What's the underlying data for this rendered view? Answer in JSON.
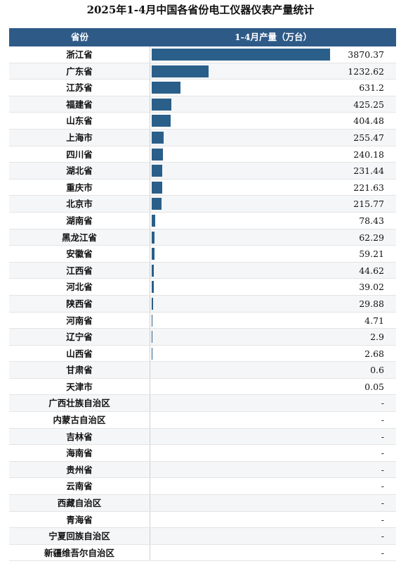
{
  "title": "2025年1-4月中国各省份电工仪器仪表产量统计",
  "header": {
    "col1": "省份",
    "col2": "1-4月产量（万台）"
  },
  "chart_data": {
    "type": "bar",
    "title": "2025年1-4月中国各省份电工仪器仪表产量统计",
    "xlabel": "省份",
    "ylabel": "1-4月产量（万台）",
    "categories": [
      "浙江省",
      "广东省",
      "江苏省",
      "福建省",
      "山东省",
      "上海市",
      "四川省",
      "湖北省",
      "重庆市",
      "北京市",
      "湖南省",
      "黑龙江省",
      "安徽省",
      "江西省",
      "河北省",
      "陕西省",
      "河南省",
      "辽宁省",
      "山西省",
      "甘肃省",
      "天津市",
      "广西壮族自治区",
      "内蒙古自治区",
      "吉林省",
      "海南省",
      "贵州省",
      "云南省",
      "西藏自治区",
      "青海省",
      "宁夏回族自治区",
      "新疆维吾尔自治区"
    ],
    "values": [
      3870.37,
      1232.62,
      631.2,
      425.25,
      404.48,
      255.47,
      240.18,
      231.44,
      221.63,
      215.77,
      78.43,
      62.29,
      59.21,
      44.62,
      39.02,
      29.88,
      4.71,
      2.9,
      2.68,
      0.6,
      0.05,
      null,
      null,
      null,
      null,
      null,
      null,
      null,
      null,
      null,
      null
    ],
    "labels": [
      "3870.37",
      "1232.62",
      "631.2",
      "425.25",
      "404.48",
      "255.47",
      "240.18",
      "231.44",
      "221.63",
      "215.77",
      "78.43",
      "62.29",
      "59.21",
      "44.62",
      "39.02",
      "29.88",
      "4.71",
      "2.9",
      "2.68",
      "0.6",
      "0.05",
      "-",
      "-",
      "-",
      "-",
      "-",
      "-",
      "-",
      "-",
      "-",
      "-"
    ],
    "max_value": 3870.37,
    "bar_color": "#2a5f8a",
    "header_color": "#2e5a87"
  }
}
